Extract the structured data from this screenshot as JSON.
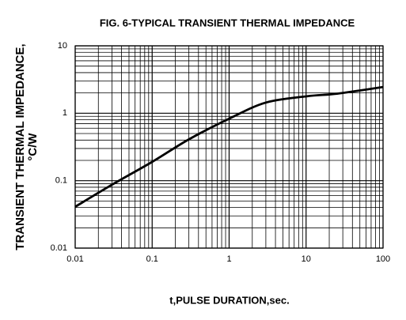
{
  "chart_data": {
    "type": "line",
    "title": "FIG. 6-TYPICAL TRANSIENT THERMAL IMPEDANCE",
    "x_label": "t,PULSE DURATION,sec.",
    "y_label": [
      "TRANSIENT THERMAL IMPEDANCE,",
      "°C/W"
    ],
    "x": [
      0.01,
      0.03,
      0.1,
      0.3,
      1,
      3,
      10,
      20,
      30,
      100
    ],
    "values": [
      0.041,
      0.087,
      0.19,
      0.41,
      0.83,
      1.44,
      1.78,
      1.9,
      2.0,
      2.45
    ],
    "color": "#000000",
    "xscale": "log",
    "yscale": "log",
    "xlim": [
      0.01,
      100
    ],
    "ylim": [
      0.01,
      10
    ],
    "xticks": [
      0.01,
      0.1,
      1,
      10,
      100
    ],
    "yticks": [
      0.01,
      0.1,
      1,
      10
    ],
    "grid": true
  }
}
